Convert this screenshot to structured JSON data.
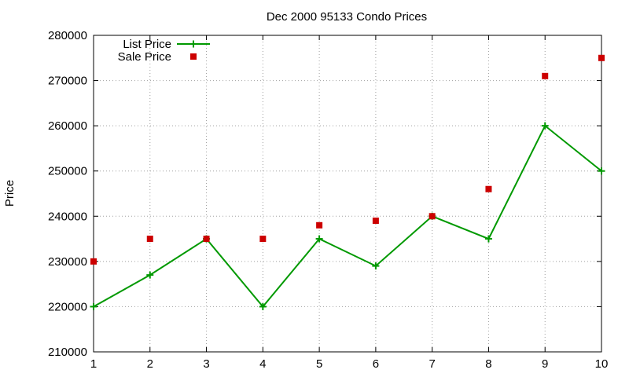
{
  "chart_data": {
    "type": "line",
    "title": "Dec 2000 95133 Condo Prices",
    "xlabel": "",
    "ylabel": "Price",
    "x": [
      1,
      2,
      3,
      4,
      5,
      6,
      7,
      8,
      9,
      10
    ],
    "xlim": [
      1,
      10
    ],
    "ylim": [
      210000,
      280000
    ],
    "xticks": [
      1,
      2,
      3,
      4,
      5,
      6,
      7,
      8,
      9,
      10
    ],
    "yticks": [
      210000,
      220000,
      230000,
      240000,
      250000,
      260000,
      270000,
      280000
    ],
    "grid": true,
    "legend_position": "top-left",
    "series": [
      {
        "name": "List Price",
        "style": "lines+points",
        "marker": "plus",
        "color": "#009900",
        "values": [
          220000,
          227000,
          235000,
          220000,
          235000,
          229000,
          240000,
          235000,
          260000,
          250000
        ]
      },
      {
        "name": "Sale Price",
        "style": "points",
        "marker": "square",
        "color": "#cc0000",
        "values": [
          230000,
          235000,
          235000,
          235000,
          238000,
          239000,
          240000,
          246000,
          271000,
          275000
        ]
      }
    ]
  }
}
